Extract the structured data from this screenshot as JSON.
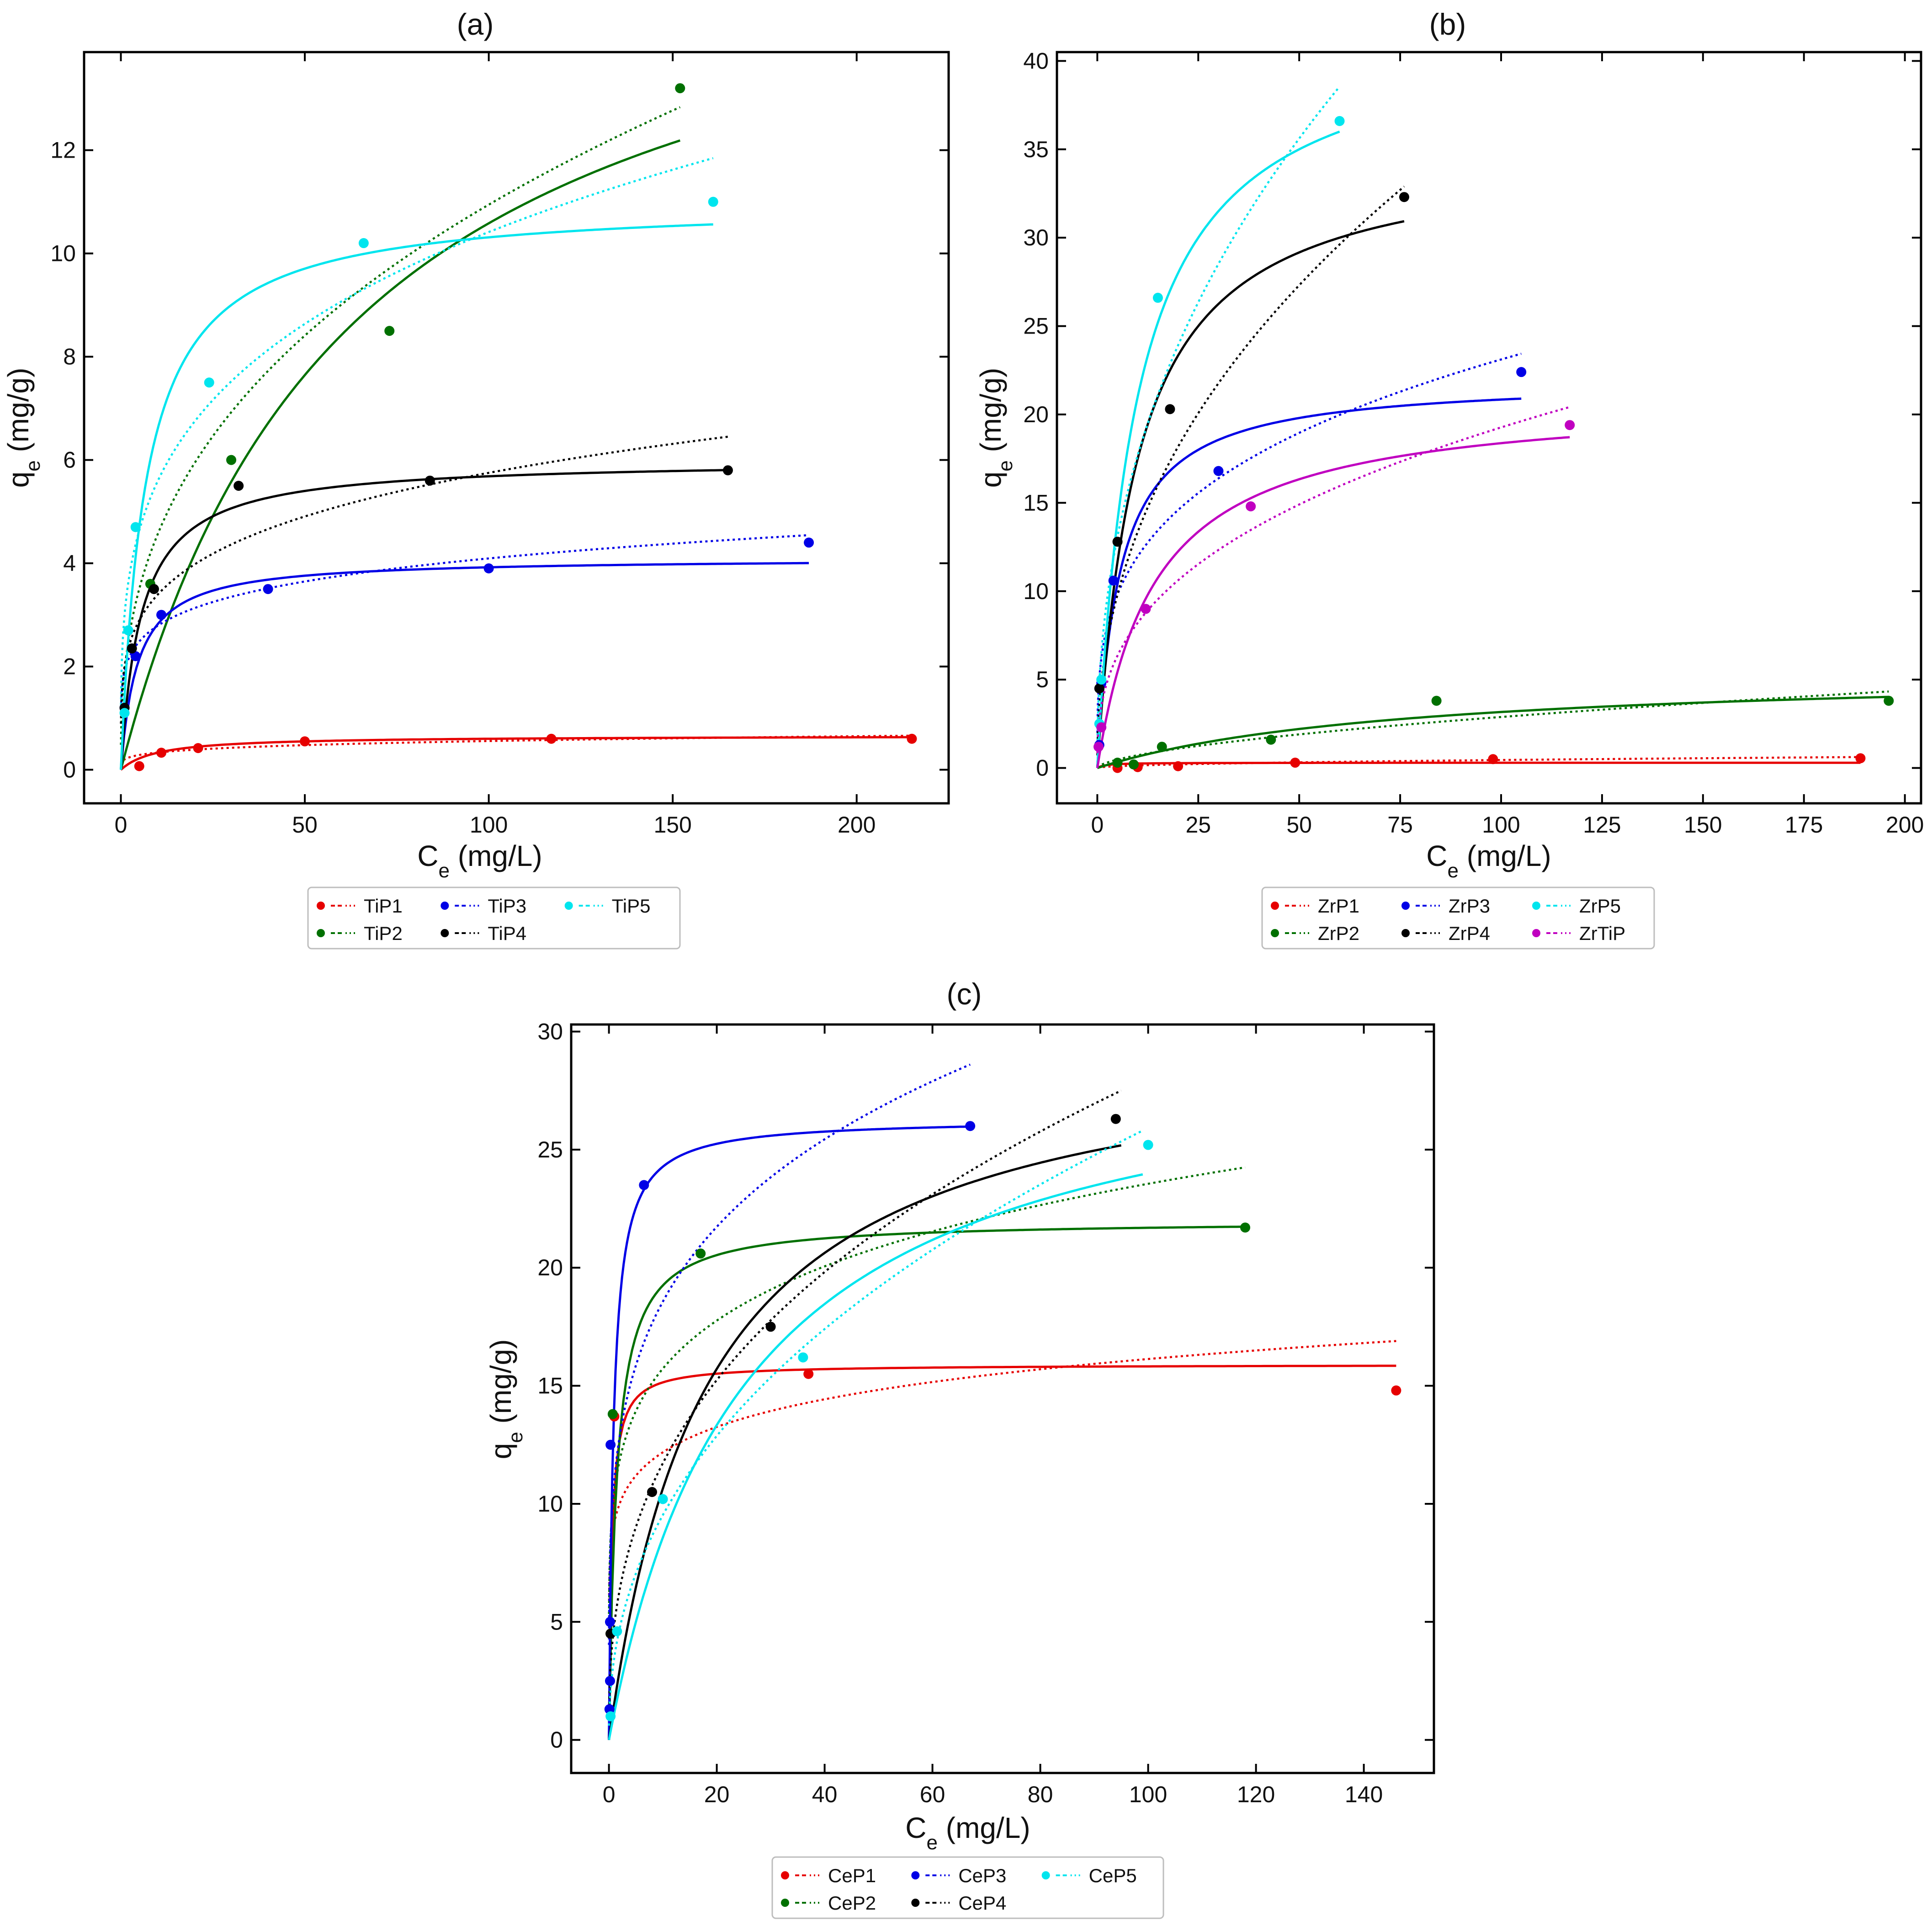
{
  "chart_data": [
    {
      "type": "scatter",
      "panel": "a",
      "title": "(a)",
      "xlabel_main": "C",
      "xlabel_sub": "e",
      "xlabel_unit": " (mg/L)",
      "ylabel_main": "q",
      "ylabel_sub": "e",
      "ylabel_unit": " (mg/g)",
      "xlim": [
        -10,
        225
      ],
      "ylim": [
        -0.65,
        13.9
      ],
      "xticks": [
        0,
        50,
        100,
        150,
        200
      ],
      "xtick_labels": [
        "0",
        "50",
        "100",
        "150",
        "200"
      ],
      "yticks": [
        0,
        2,
        4,
        6,
        8,
        10,
        12
      ],
      "ytick_labels": [
        "0",
        "2",
        "4",
        "6",
        "8",
        "10",
        "12"
      ],
      "series": [
        {
          "name": "TiP1",
          "color": "#e60000",
          "points": [
            [
              5,
              0.07
            ],
            [
              11,
              0.33
            ],
            [
              21,
              0.42
            ],
            [
              50,
              0.55
            ],
            [
              117,
              0.6
            ],
            [
              215,
              0.6
            ]
          ],
          "langmuir": {
            "qm": 0.66,
            "KL": 0.1,
            "xmax": 215
          },
          "freundlich": {
            "KF": 0.2,
            "n": 4.5,
            "xmax": 215
          }
        },
        {
          "name": "TiP2",
          "color": "#007000",
          "points": [
            [
              8,
              3.6
            ],
            [
              30,
              6.0
            ],
            [
              73,
              8.5
            ],
            [
              152,
              13.2
            ]
          ],
          "langmuir": {
            "qm": 17.2,
            "KL": 0.016,
            "xmax": 152
          },
          "freundlich": {
            "KF": 1.9,
            "n": 2.63,
            "xmax": 152
          }
        },
        {
          "name": "TiP3",
          "color": "#0000e6",
          "points": [
            [
              1,
              1.2
            ],
            [
              4,
              2.2
            ],
            [
              11,
              3.0
            ],
            [
              40,
              3.5
            ],
            [
              100,
              3.9
            ],
            [
              187,
              4.4
            ]
          ],
          "langmuir": {
            "qm": 4.1,
            "KL": 0.22,
            "xmax": 187
          },
          "freundlich": {
            "KF": 1.9,
            "n": 6.0,
            "xmax": 187
          }
        },
        {
          "name": "TiP4",
          "color": "#000000",
          "points": [
            [
              1,
              1.2
            ],
            [
              3,
              2.35
            ],
            [
              9,
              3.5
            ],
            [
              32,
              5.5
            ],
            [
              84,
              5.6
            ],
            [
              165,
              5.8
            ]
          ],
          "langmuir": {
            "qm": 6.0,
            "KL": 0.18,
            "xmax": 165
          },
          "freundlich": {
            "KF": 2.0,
            "n": 4.36,
            "xmax": 165
          }
        },
        {
          "name": "TiP5",
          "color": "#00e5ee",
          "points": [
            [
              1,
              1.1
            ],
            [
              2,
              2.7
            ],
            [
              4,
              4.7
            ],
            [
              24,
              7.5
            ],
            [
              66,
              10.2
            ],
            [
              161,
              11.0
            ]
          ],
          "langmuir": {
            "qm": 11.0,
            "KL": 0.15,
            "xmax": 161
          },
          "freundlich": {
            "KF": 3.0,
            "n": 3.7,
            "xmax": 161
          }
        }
      ],
      "legend": {
        "placement": "below",
        "columns": 3
      }
    },
    {
      "type": "scatter",
      "panel": "b",
      "title": "(b)",
      "xlabel_main": "C",
      "xlabel_sub": "e",
      "xlabel_unit": " (mg/L)",
      "ylabel_main": "q",
      "ylabel_sub": "e",
      "ylabel_unit": " (mg/g)",
      "xlim": [
        -10,
        204
      ],
      "ylim": [
        -2,
        40.5
      ],
      "xticks": [
        0,
        25,
        50,
        75,
        100,
        125,
        150,
        175,
        200
      ],
      "xtick_labels": [
        "0",
        "25",
        "50",
        "75",
        "100",
        "125",
        "150",
        "175",
        "200"
      ],
      "yticks": [
        0,
        5,
        10,
        15,
        20,
        25,
        30,
        35,
        40
      ],
      "ytick_labels": [
        "0",
        "5",
        "10",
        "15",
        "20",
        "25",
        "30",
        "35",
        "40"
      ],
      "series": [
        {
          "name": "ZrP1",
          "color": "#e60000",
          "points": [
            [
              5,
              0.0
            ],
            [
              10,
              0.05
            ],
            [
              20,
              0.1
            ],
            [
              49,
              0.3
            ],
            [
              98,
              0.5
            ],
            [
              189,
              0.55
            ]
          ],
          "langmuir": {
            "qm": 0.3,
            "KL": 0.5,
            "xmax": 189
          },
          "freundlich": {
            "KF": 0.045,
            "n": 2.0,
            "xmax": 189
          }
        },
        {
          "name": "ZrP2",
          "color": "#007000",
          "points": [
            [
              5,
              0.3
            ],
            [
              9,
              0.2
            ],
            [
              16,
              1.2
            ],
            [
              43,
              1.6
            ],
            [
              84,
              3.8
            ],
            [
              196,
              3.8
            ]
          ],
          "langmuir": {
            "qm": 5.6,
            "KL": 0.013,
            "xmax": 196
          },
          "freundlich": {
            "KF": 0.18,
            "n": 1.66,
            "xmax": 196
          }
        },
        {
          "name": "ZrP3",
          "color": "#0000e6",
          "points": [
            [
              0.5,
              1.3
            ],
            [
              1,
              4.8
            ],
            [
              4,
              10.6
            ],
            [
              30,
              16.8
            ],
            [
              105,
              22.4
            ]
          ],
          "langmuir": {
            "qm": 22.0,
            "KL": 0.18,
            "xmax": 105
          },
          "freundlich": {
            "KF": 6.2,
            "n": 3.5,
            "xmax": 105
          }
        },
        {
          "name": "ZrP4",
          "color": "#000000",
          "points": [
            [
              0.5,
              4.5
            ],
            [
              5,
              12.8
            ],
            [
              18,
              20.3
            ],
            [
              76,
              32.3
            ]
          ],
          "langmuir": {
            "qm": 35.0,
            "KL": 0.1,
            "xmax": 76
          },
          "freundlich": {
            "KF": 4.8,
            "n": 2.25,
            "xmax": 76
          }
        },
        {
          "name": "ZrP5",
          "color": "#00e5ee",
          "points": [
            [
              0.5,
              2.5
            ],
            [
              1,
              5.0
            ],
            [
              15,
              26.6
            ],
            [
              60,
              36.6
            ]
          ],
          "langmuir": {
            "qm": 42.0,
            "KL": 0.1,
            "xmax": 60
          },
          "freundlich": {
            "KF": 6.5,
            "n": 2.3,
            "xmax": 60
          }
        },
        {
          "name": "ZrTiP",
          "color": "#c000c0",
          "points": [
            [
              0.3,
              1.2
            ],
            [
              1,
              2.3
            ],
            [
              12,
              9.0
            ],
            [
              38,
              14.8
            ],
            [
              117,
              19.4
            ]
          ],
          "langmuir": {
            "qm": 21.0,
            "KL": 0.07,
            "xmax": 117
          },
          "freundlich": {
            "KF": 3.5,
            "n": 2.7,
            "xmax": 117
          }
        }
      ],
      "legend": {
        "placement": "below",
        "columns": 3
      }
    },
    {
      "type": "scatter",
      "panel": "c",
      "title": "(c)",
      "xlabel_main": "C",
      "xlabel_sub": "e",
      "xlabel_unit": " (mg/L)",
      "ylabel_main": "q",
      "ylabel_sub": "e",
      "ylabel_unit": " (mg/g)",
      "xlim": [
        -7,
        153
      ],
      "ylim": [
        -1.4,
        30.3
      ],
      "xticks": [
        0,
        20,
        40,
        60,
        80,
        100,
        120,
        140
      ],
      "xtick_labels": [
        "0",
        "20",
        "40",
        "60",
        "80",
        "100",
        "120",
        "140"
      ],
      "yticks": [
        0,
        5,
        10,
        15,
        20,
        25,
        30
      ],
      "ytick_labels": [
        "0",
        "5",
        "10",
        "15",
        "20",
        "25",
        "30"
      ],
      "series": [
        {
          "name": "CeP1",
          "color": "#e60000",
          "points": [
            [
              0.3,
              4.5
            ],
            [
              1,
              13.7
            ],
            [
              37,
              15.5
            ],
            [
              146,
              14.8
            ]
          ],
          "langmuir": {
            "qm": 15.9,
            "KL": 2.0,
            "xmax": 146
          },
          "freundlich": {
            "KF": 9.2,
            "n": 8.2,
            "xmax": 146
          }
        },
        {
          "name": "CeP2",
          "color": "#007000",
          "points": [
            [
              0.3,
              4.5
            ],
            [
              0.7,
              13.8
            ],
            [
              17,
              20.6
            ],
            [
              118,
              21.7
            ]
          ],
          "langmuir": {
            "qm": 22.0,
            "KL": 0.7,
            "xmax": 118
          },
          "freundlich": {
            "KF": 10.5,
            "n": 5.7,
            "xmax": 118
          }
        },
        {
          "name": "CeP3",
          "color": "#0000e6",
          "points": [
            [
              0.1,
              1.3
            ],
            [
              0.2,
              2.5
            ],
            [
              0.2,
              5.0
            ],
            [
              0.3,
              12.5
            ],
            [
              6.5,
              23.5
            ],
            [
              67,
              26.0
            ]
          ],
          "langmuir": {
            "qm": 26.3,
            "KL": 1.2,
            "xmax": 67
          },
          "freundlich": {
            "KF": 11.0,
            "n": 4.4,
            "xmax": 67
          }
        },
        {
          "name": "CeP4",
          "color": "#000000",
          "points": [
            [
              0.3,
              4.5
            ],
            [
              8,
              10.5
            ],
            [
              30,
              17.5
            ],
            [
              94,
              26.3
            ]
          ],
          "langmuir": {
            "qm": 30.0,
            "KL": 0.055,
            "xmax": 95
          },
          "freundlich": {
            "KF": 4.9,
            "n": 2.64,
            "xmax": 95
          }
        },
        {
          "name": "CeP5",
          "color": "#00e5ee",
          "points": [
            [
              0.3,
              1.0
            ],
            [
              1.5,
              4.6
            ],
            [
              10,
              10.2
            ],
            [
              36,
              16.2
            ],
            [
              100,
              25.2
            ]
          ],
          "langmuir": {
            "qm": 30.0,
            "KL": 0.04,
            "xmax": 99
          },
          "freundlich": {
            "KF": 3.5,
            "n": 2.3,
            "xmax": 99
          }
        }
      ],
      "legend": {
        "placement": "below",
        "columns": 3
      }
    }
  ]
}
